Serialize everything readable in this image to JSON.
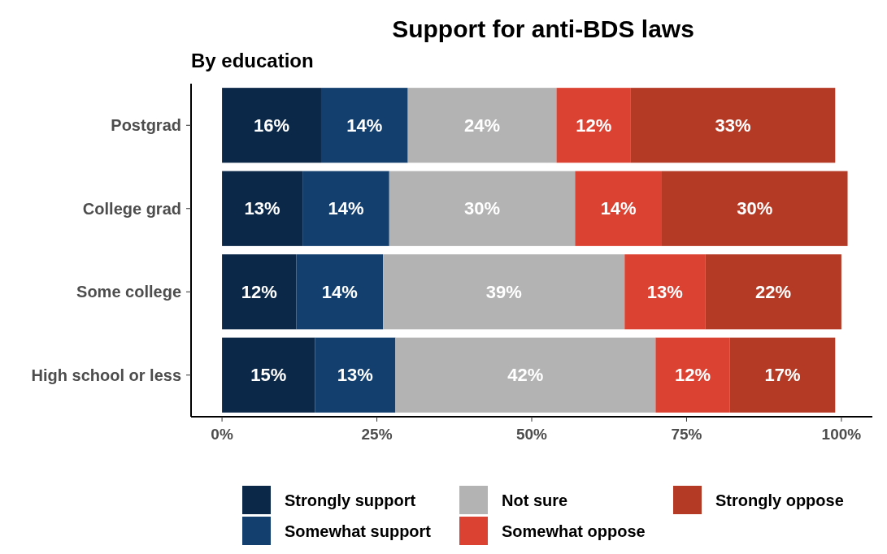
{
  "chart_data": {
    "type": "bar",
    "title": "Support for anti-BDS laws",
    "subtitle": "By education",
    "orientation": "horizontal",
    "stacked": true,
    "categories": [
      "Postgrad",
      "College grad",
      "Some college",
      "High school or less"
    ],
    "series": [
      {
        "name": "Strongly support",
        "color": "#0c2849",
        "values": [
          16,
          13,
          12,
          15
        ],
        "value_labels": [
          "16%",
          "13%",
          "12%",
          "15%"
        ]
      },
      {
        "name": "Somewhat support",
        "color": "#133f6f",
        "values": [
          14,
          14,
          14,
          13
        ],
        "value_labels": [
          "14%",
          "14%",
          "14%",
          "13%"
        ]
      },
      {
        "name": "Not sure",
        "color": "#b3b3b3",
        "values": [
          24,
          30,
          39,
          42
        ],
        "value_labels": [
          "24%",
          "30%",
          "39%",
          "42%"
        ]
      },
      {
        "name": "Somewhat oppose",
        "color": "#dc4232",
        "values": [
          12,
          14,
          13,
          12
        ],
        "value_labels": [
          "12%",
          "14%",
          "13%",
          "12%"
        ]
      },
      {
        "name": "Strongly oppose",
        "color": "#b53a25",
        "values": [
          33,
          30,
          22,
          17
        ],
        "value_labels": [
          "33%",
          "30%",
          "22%",
          "17%"
        ]
      }
    ],
    "xlim": [
      -5,
      105
    ],
    "xticks": [
      {
        "value": 0,
        "label": "0%"
      },
      {
        "value": 25,
        "label": "25%"
      },
      {
        "value": 50,
        "label": "50%"
      },
      {
        "value": 75,
        "label": "75%"
      },
      {
        "value": 100,
        "label": "100%"
      }
    ],
    "grid": false,
    "legend": "bottom"
  }
}
